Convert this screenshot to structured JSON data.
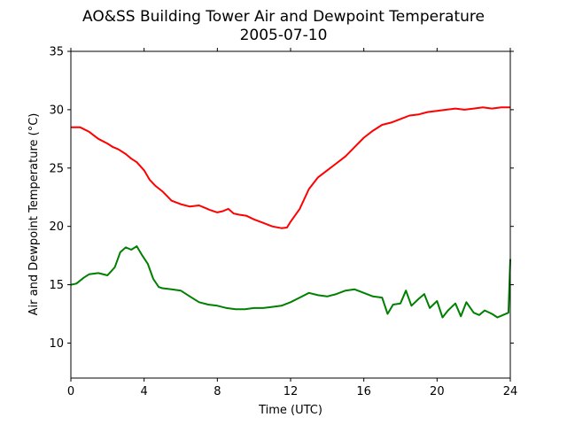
{
  "chart_data": {
    "type": "line",
    "title": "AO&SS Building Tower Air and Dewpoint Temperature",
    "subtitle": "2005-07-10",
    "xlabel": "Time (UTC)",
    "ylabel": "Air and Dewpoint Temperature (°C)",
    "xlim": [
      0,
      24
    ],
    "ylim": [
      7,
      35
    ],
    "x_ticks": [
      "0",
      "4",
      "8",
      "12",
      "16",
      "20",
      "24"
    ],
    "y_ticks": [
      "10",
      "15",
      "20",
      "25",
      "30",
      "35"
    ],
    "grid": false,
    "legend": "none",
    "series": [
      {
        "color": "#ff0000",
        "x": [
          0,
          0.5,
          1,
          1.5,
          2,
          2.3,
          2.6,
          3,
          3.3,
          3.6,
          4,
          4.3,
          4.6,
          5,
          5.5,
          6,
          6.5,
          7,
          7.3,
          7.6,
          8,
          8.3,
          8.6,
          8.9,
          9.2,
          9.6,
          10,
          10.5,
          11,
          11.5,
          11.8,
          12,
          12.5,
          13,
          13.5,
          14,
          14.5,
          15,
          15.5,
          16,
          16.5,
          17,
          17.5,
          18,
          18.5,
          19,
          19.5,
          20,
          20.5,
          21,
          21.5,
          22,
          22.5,
          23,
          23.5,
          24
        ],
        "y": [
          28.5,
          28.5,
          28.1,
          27.5,
          27.1,
          26.8,
          26.6,
          26.2,
          25.8,
          25.5,
          24.8,
          24.0,
          23.5,
          23.0,
          22.2,
          21.9,
          21.7,
          21.8,
          21.6,
          21.4,
          21.2,
          21.3,
          21.5,
          21.1,
          21.0,
          20.9,
          20.6,
          20.3,
          20.0,
          19.85,
          19.9,
          20.4,
          21.5,
          23.2,
          24.2,
          24.8,
          25.4,
          26.0,
          26.8,
          27.6,
          28.2,
          28.7,
          28.9,
          29.2,
          29.5,
          29.6,
          29.8,
          29.9,
          30.0,
          30.1,
          30.0,
          30.1,
          30.2,
          30.1,
          30.2,
          30.2
        ]
      },
      {
        "color": "#008000",
        "x": [
          0,
          0.3,
          0.7,
          1,
          1.5,
          2,
          2.4,
          2.7,
          3,
          3.3,
          3.6,
          3.9,
          4.2,
          4.5,
          4.8,
          5,
          5.5,
          6,
          6.5,
          7,
          7.5,
          8,
          8.5,
          9,
          9.5,
          10,
          10.5,
          11,
          11.5,
          12,
          12.5,
          13,
          13.5,
          14,
          14.5,
          15,
          15.5,
          16,
          16.5,
          17,
          17.3,
          17.6,
          18,
          18.3,
          18.6,
          19,
          19.3,
          19.6,
          20,
          20.3,
          20.6,
          21,
          21.3,
          21.6,
          22,
          22.3,
          22.6,
          23,
          23.3,
          23.6,
          23.9,
          24
        ],
        "y": [
          15.0,
          15.1,
          15.6,
          15.9,
          16.0,
          15.8,
          16.5,
          17.8,
          18.2,
          18.0,
          18.3,
          17.5,
          16.8,
          15.5,
          14.8,
          14.7,
          14.6,
          14.5,
          14.0,
          13.5,
          13.3,
          13.2,
          13.0,
          12.9,
          12.9,
          13.0,
          13.0,
          13.1,
          13.2,
          13.5,
          13.9,
          14.3,
          14.1,
          14.0,
          14.2,
          14.5,
          14.6,
          14.3,
          14.0,
          13.9,
          12.5,
          13.3,
          13.4,
          14.5,
          13.2,
          13.8,
          14.2,
          13.0,
          13.6,
          12.2,
          12.8,
          13.4,
          12.3,
          13.5,
          12.6,
          12.4,
          12.8,
          12.5,
          12.2,
          12.4,
          12.6,
          17.2
        ]
      }
    ]
  }
}
